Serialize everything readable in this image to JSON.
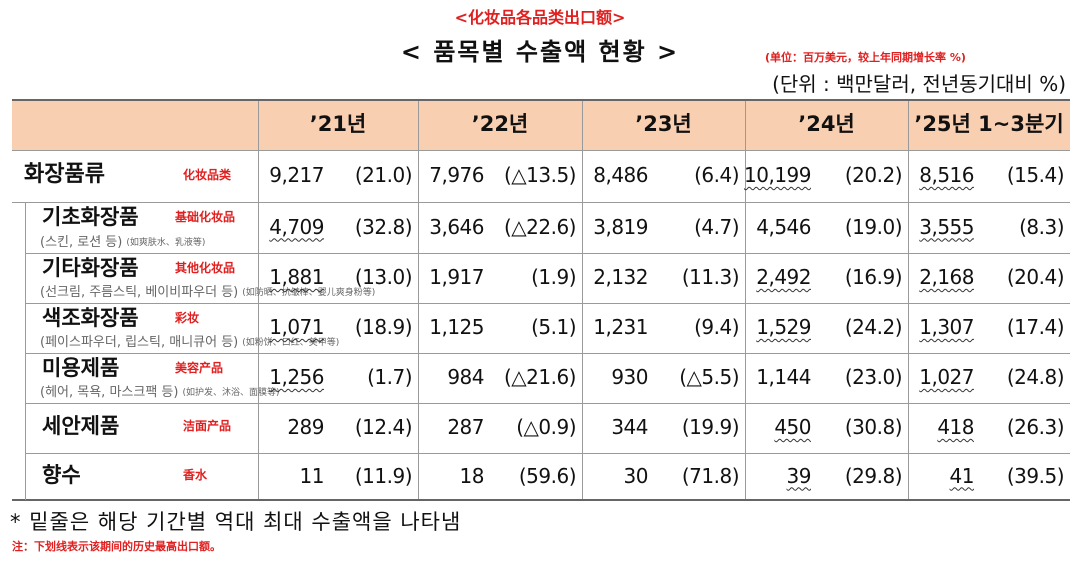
{
  "header": {
    "title_cn": "<化妆品各品类出口额>",
    "title": "< 품목별 수출액 현황 >",
    "unit_cn": "(单位：百万美元，较上年同期增长率 %)",
    "unit": "(단위 : 백만달러, 전년동기대비 %)"
  },
  "table": {
    "columns": [
      "’21년",
      "’22년",
      "’23년",
      "’24년",
      "’25년 1~3분기"
    ],
    "underline_max": true,
    "rows": [
      {
        "name": "화장품류",
        "name_cn": "化妆品类",
        "cells": [
          {
            "value": "9,217",
            "change": "(21.0)",
            "max": false
          },
          {
            "value": "7,976",
            "change": "(△13.5)",
            "max": false
          },
          {
            "value": "8,486",
            "change": "(6.4)",
            "max": false
          },
          {
            "value": "10,199",
            "change": "(20.2)",
            "max": true
          },
          {
            "value": "8,516",
            "change": "(15.4)",
            "max": true
          }
        ]
      },
      {
        "name": "기초화장품",
        "name_cn": "基础化妆品",
        "desc": "(스킨, 로션 등)",
        "desc_cn": "(如爽肤水、乳液等)",
        "cells": [
          {
            "value": "4,709",
            "change": "(32.8)",
            "max": true
          },
          {
            "value": "3,646",
            "change": "(△22.6)",
            "max": false
          },
          {
            "value": "3,819",
            "change": "(4.7)",
            "max": false
          },
          {
            "value": "4,546",
            "change": "(19.0)",
            "max": false
          },
          {
            "value": "3,555",
            "change": "(8.3)",
            "max": true
          }
        ]
      },
      {
        "name": "기타화장품",
        "name_cn": "其他化妆品",
        "desc": "(선크림, 주름스틱, 베이비파우더 등)",
        "desc_cn": "(如防晒、抗皱棒、婴儿爽身粉等)",
        "cells": [
          {
            "value": "1,881",
            "change": "(13.0)",
            "max": true
          },
          {
            "value": "1,917",
            "change": "(1.9)",
            "max": false
          },
          {
            "value": "2,132",
            "change": "(11.3)",
            "max": false
          },
          {
            "value": "2,492",
            "change": "(16.9)",
            "max": true
          },
          {
            "value": "2,168",
            "change": "(20.4)",
            "max": true
          }
        ]
      },
      {
        "name": "색조화장품",
        "name_cn": "彩妆",
        "desc": "(페이스파우더, 립스틱, 매니큐어 등)",
        "desc_cn": "(如粉饼、口红、美甲等)",
        "cells": [
          {
            "value": "1,071",
            "change": "(18.9)",
            "max": true
          },
          {
            "value": "1,125",
            "change": "(5.1)",
            "max": false
          },
          {
            "value": "1,231",
            "change": "(9.4)",
            "max": false
          },
          {
            "value": "1,529",
            "change": "(24.2)",
            "max": true
          },
          {
            "value": "1,307",
            "change": "(17.4)",
            "max": true
          }
        ]
      },
      {
        "name": "미용제품",
        "name_cn": "美容产品",
        "desc": "(헤어, 목욕, 마스크팩 등)",
        "desc_cn": "(如护发、沐浴、面膜等)",
        "cells": [
          {
            "value": "1,256",
            "change": "(1.7)",
            "max": true
          },
          {
            "value": "984",
            "change": "(△21.6)",
            "max": false
          },
          {
            "value": "930",
            "change": "(△5.5)",
            "max": false
          },
          {
            "value": "1,144",
            "change": "(23.0)",
            "max": false
          },
          {
            "value": "1,027",
            "change": "(24.8)",
            "max": true
          }
        ]
      },
      {
        "name": "세안제품",
        "name_cn": "洁面产品",
        "cells": [
          {
            "value": "289",
            "change": "(12.4)",
            "max": false
          },
          {
            "value": "287",
            "change": "(△0.9)",
            "max": false
          },
          {
            "value": "344",
            "change": "(19.9)",
            "max": false
          },
          {
            "value": "450",
            "change": "(30.8)",
            "max": true
          },
          {
            "value": "418",
            "change": "(26.3)",
            "max": true
          }
        ]
      },
      {
        "name": "향수",
        "name_cn": "香水",
        "cells": [
          {
            "value": "11",
            "change": "(11.9)",
            "max": false
          },
          {
            "value": "18",
            "change": "(59.6)",
            "max": false
          },
          {
            "value": "30",
            "change": "(71.8)",
            "max": false
          },
          {
            "value": "39",
            "change": "(29.8)",
            "max": true
          },
          {
            "value": "41",
            "change": "(39.5)",
            "max": true
          }
        ]
      }
    ]
  },
  "footnote": "* 밑줄은 해당 기간별 역대 최대 수출액을 나타냄",
  "footnote_cn": "注：下划线表示该期间的历史最高出口额。"
}
